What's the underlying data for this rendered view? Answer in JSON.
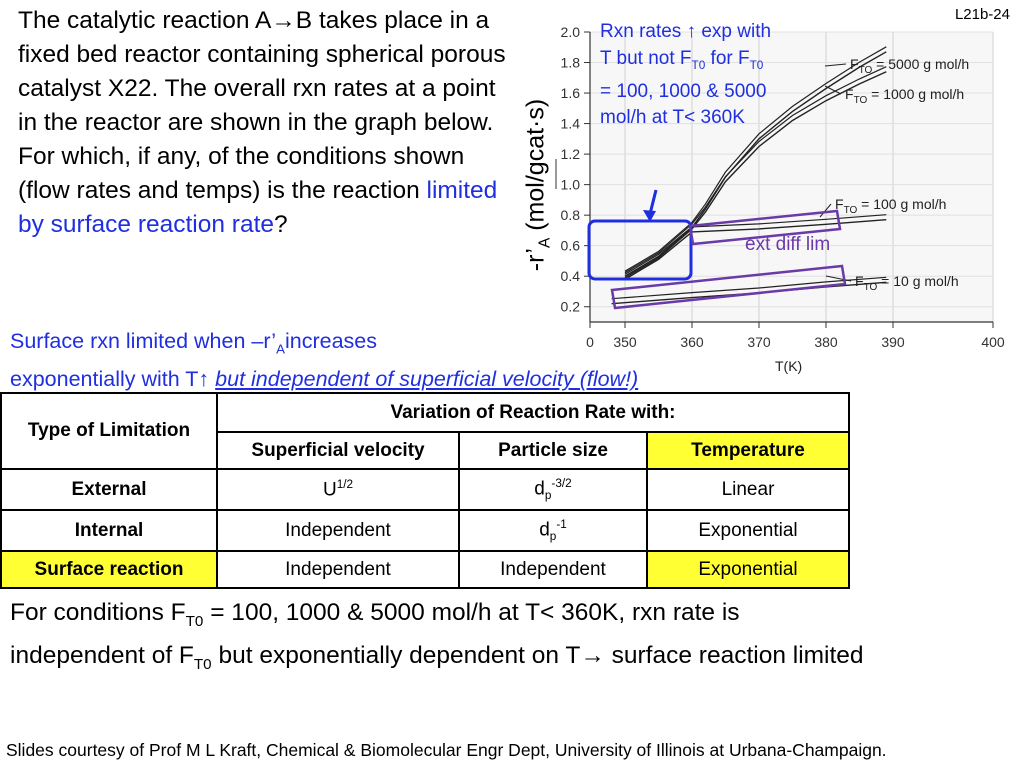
{
  "slide_id": "L21b-24",
  "question": {
    "text": "The catalytic reaction A→B takes place in a fixed bed reactor containing spherical porous catalyst X22. The overall rxn rates at a point in the reactor are shown in the graph below. For which, if any, of the conditions shown (flow rates and temps) is the reaction",
    "highlight": "limited by surface reaction rate",
    "end": "?"
  },
  "rule": {
    "line1_a": "Surface rxn limited when  –r’",
    "line1_sub": "A",
    "line1_b": "increases",
    "line2_a": "exponentially with T↑ ",
    "line2_em": "but independent of superficial velocity (flow!)"
  },
  "annotations": {
    "rxn_note_1": "Rxn rates ↑ exp with T but not F",
    "rxn_note_sub1": "T0",
    "rxn_note_2": " for F",
    "rxn_note_sub2": "T0",
    "rxn_note_3": " = 100, 1000 & 5000 mol/h at T< 360K",
    "ext_diff": "ext diff lim",
    "colors": {
      "note": "#1f2fe0",
      "ext_box": "#6a3aa8",
      "rate_box": "#1f2fe0"
    }
  },
  "chart_data": {
    "type": "line",
    "ylabel_main": "-r’",
    "ylabel_sub": "A",
    "ylabel_units": " (mol/gcat·s)",
    "xlabel": "T(K)",
    "x_ticks": [
      "0",
      "350",
      "360",
      "370",
      "380",
      "390",
      "400"
    ],
    "y_ticks": [
      "2.0",
      "1.8",
      "1.6",
      "1.4",
      "1.2",
      "1.0",
      "0.8",
      "0.6",
      "0.4",
      "0.2"
    ],
    "xlim": [
      345,
      400
    ],
    "ylim": [
      0.1,
      2.0
    ],
    "grid": true,
    "series": [
      {
        "name": "FTO = 5000 g mol/h",
        "name_pre": "F",
        "name_sub": "TO",
        "name_post": " = 5000 g mol/h",
        "x": [
          350,
          355,
          360,
          362,
          365,
          370,
          375,
          380,
          385,
          389
        ],
        "y": [
          0.4,
          0.53,
          0.72,
          0.84,
          1.05,
          1.3,
          1.48,
          1.63,
          1.77,
          1.87
        ]
      },
      {
        "name": "FTO = 1000 g mol/h",
        "name_pre": "F",
        "name_sub": "TO",
        "name_post": " = 1000 g mol/h",
        "x": [
          350,
          355,
          360,
          362,
          365,
          370,
          375,
          380,
          385,
          389
        ],
        "y": [
          0.39,
          0.52,
          0.71,
          0.82,
          1.02,
          1.25,
          1.42,
          1.55,
          1.66,
          1.74
        ]
      },
      {
        "name": "FTO = 100 g mol/h",
        "name_pre": "F",
        "name_sub": "TO",
        "name_post": " = 100 g mol/h",
        "x": [
          350,
          355,
          360,
          370,
          380,
          389
        ],
        "y": [
          0.38,
          0.51,
          0.69,
          0.71,
          0.74,
          0.77
        ]
      },
      {
        "name": "FTO = 10 g mol/h",
        "name_pre": "F",
        "name_sub": "TO",
        "name_post": " = 10 g mol/h",
        "x": [
          348,
          360,
          370,
          380,
          389
        ],
        "y": [
          0.22,
          0.26,
          0.29,
          0.33,
          0.36
        ]
      }
    ]
  },
  "table": {
    "col0_header": "Type of Limitation",
    "group_header": "Variation of Reaction Rate with:",
    "sub_headers": [
      "Superficial velocity",
      "Particle size",
      "Temperature"
    ],
    "rows": [
      {
        "type": "External",
        "velocity": "U",
        "velocity_sup": "1/2",
        "size": "d",
        "size_sub": "p",
        "size_sup": "-3/2",
        "temp": "Linear"
      },
      {
        "type": "Internal",
        "velocity": "Independent",
        "size": "d",
        "size_sub": "p",
        "size_sup": "-1",
        "temp": "Exponential"
      },
      {
        "type": "Surface reaction",
        "velocity": "Independent",
        "size": "Independent",
        "temp": "Exponential"
      }
    ],
    "highlight_color": "#ffff33"
  },
  "conclusion": {
    "line1_a": "For conditions F",
    "sub1": "T0",
    "line1_b": " = 100, 1000 & 5000 mol/h at T< 360K, rxn rate is",
    "line2_a": "independent of F",
    "sub2": "T0",
    "line2_b": " but exponentially dependent on T→ surface reaction limited"
  },
  "credit": "Slides courtesy of Prof M L Kraft, Chemical & Biomolecular Engr Dept, University of Illinois at Urbana-Champaign."
}
